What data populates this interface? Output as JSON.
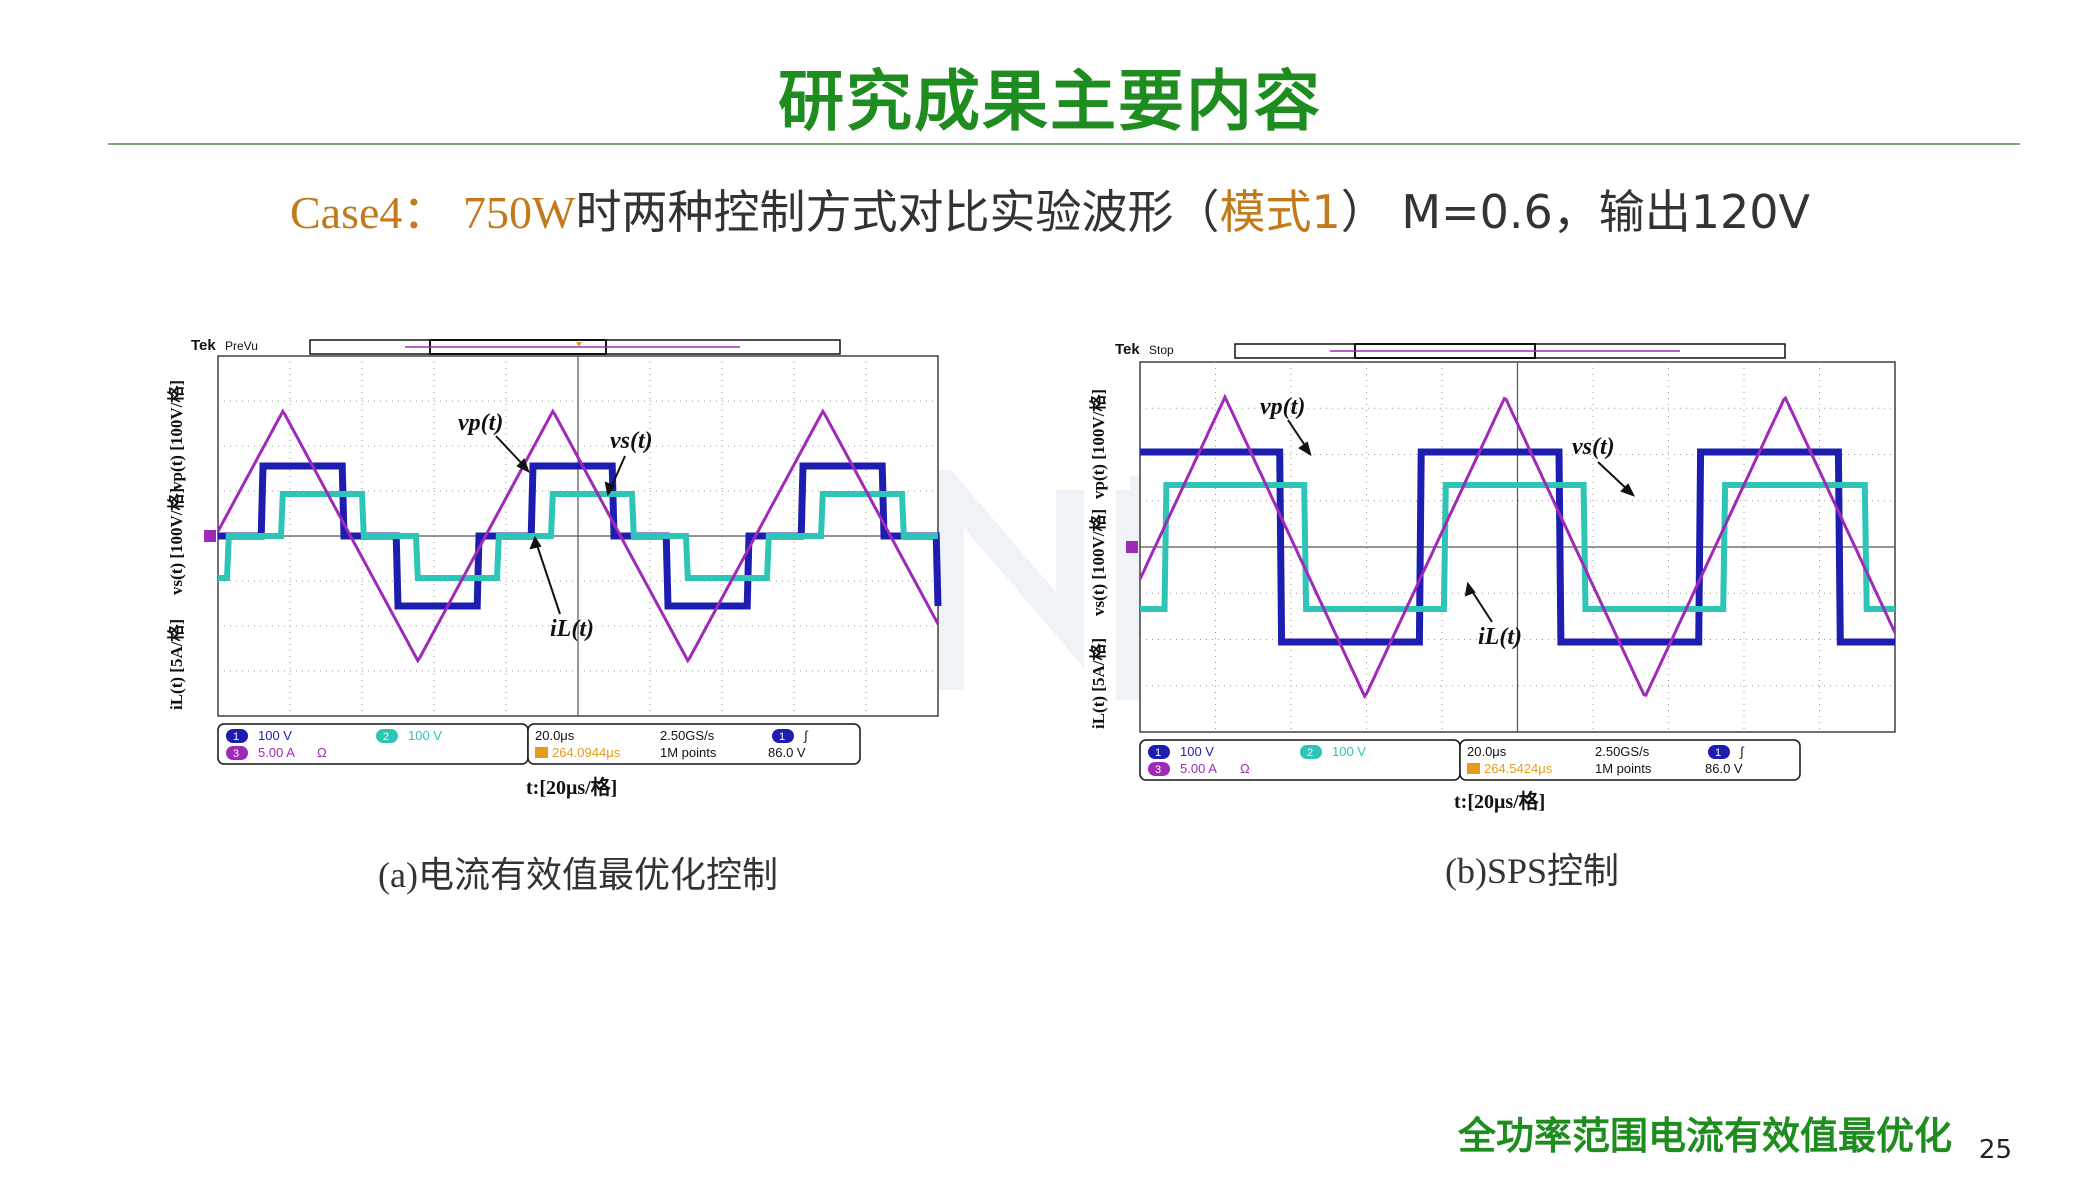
{
  "slide": {
    "title": "研究成果主要内容",
    "subtitle": {
      "case_label": "Case4：",
      "power": "750W",
      "text1": "时两种控制方式对比实验波形（",
      "mode": "模式1",
      "text2": "） M=0.6，输出120V"
    },
    "footer": "全功率范围电流有效值最优化",
    "page_number": "25"
  },
  "colors": {
    "title_green": "#1e8c1e",
    "accent_orange": "#c27a1c",
    "ch1": "#1d1db0",
    "ch2": "#2ec4b6",
    "ch3": "#a02ab8"
  },
  "scopes": [
    {
      "brand": "Tek",
      "status": "PreVu",
      "caption": "(a)电流有效值最优化控制",
      "ylabel_vp": "vp(t) [100V/格]",
      "ylabel_vs": "vs(t) [100V/格]",
      "ylabel_il": "iL(t) [5A/格]",
      "xlabel": "t:[20μs/格]",
      "label_vp": "vp(t)",
      "label_vs": "vs(t)",
      "label_il": "iL(t)",
      "ch1_scale": "100 V",
      "ch2_scale": "100 V",
      "ch3_scale": "5.00 A",
      "ch3_unit": "Ω",
      "timebase": "20.0μs",
      "sample_rate": "2.50GS/s",
      "trigger_pos": "264.0944μs",
      "record_length": "1M points",
      "trigger_level": "86.0 V"
    },
    {
      "brand": "Tek",
      "status": "Stop",
      "caption": "(b)SPS控制",
      "ylabel_vp": "vp(t) [100V/格]",
      "ylabel_vs": "vs(t) [100V/格]",
      "ylabel_il": "iL(t) [5A/格]",
      "xlabel": "t:[20μs/格]",
      "label_vp": "vp(t)",
      "label_vs": "vs(t)",
      "label_il": "iL(t)",
      "ch1_scale": "100 V",
      "ch2_scale": "100 V",
      "ch3_scale": "5.00 A",
      "ch3_unit": "Ω",
      "timebase": "20.0μs",
      "sample_rate": "2.50GS/s",
      "trigger_pos": "264.5424μs",
      "record_length": "1M points",
      "trigger_level": "86.0 V"
    }
  ]
}
